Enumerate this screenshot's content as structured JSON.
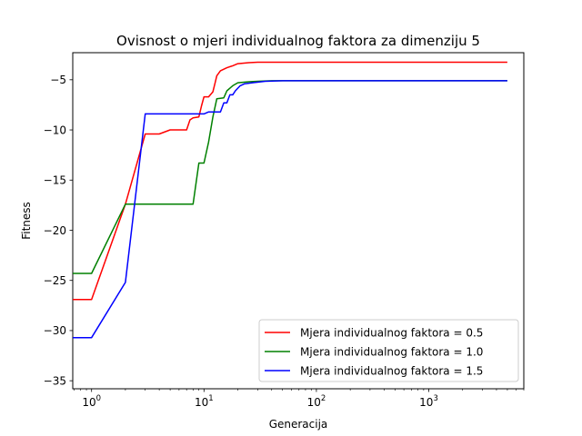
{
  "chart_data": {
    "type": "line",
    "title": "Ovisnost o mjeri individualnog faktora za dimenziju 5",
    "xlabel": "Generacija",
    "ylabel": "Fitness",
    "xscale": "log",
    "xlim": [
      0.68,
      7000
    ],
    "ylim": [
      -35.8,
      -2.3
    ],
    "xticks": [
      {
        "value": 1,
        "base": "10",
        "exp": "0"
      },
      {
        "value": 10,
        "base": "10",
        "exp": "1"
      },
      {
        "value": 100,
        "base": "10",
        "exp": "2"
      },
      {
        "value": 1000,
        "base": "10",
        "exp": "3"
      }
    ],
    "yticks": [
      {
        "value": -35,
        "label": "−35"
      },
      {
        "value": -30,
        "label": "−30"
      },
      {
        "value": -25,
        "label": "−25"
      },
      {
        "value": -20,
        "label": "−20"
      },
      {
        "value": -15,
        "label": "−15"
      },
      {
        "value": -10,
        "label": "−10"
      },
      {
        "value": -5,
        "label": "−5"
      }
    ],
    "grid": false,
    "legend_position": "lower-right",
    "series": [
      {
        "name": "Mjera individualnog faktora = 0.5",
        "color": "#ff0000",
        "points": [
          [
            0.68,
            -26.9
          ],
          [
            1,
            -26.9
          ],
          [
            2,
            -17.4
          ],
          [
            3,
            -10.4
          ],
          [
            4,
            -10.4
          ],
          [
            5,
            -10.0
          ],
          [
            6,
            -10.0
          ],
          [
            7,
            -10.0
          ],
          [
            7.5,
            -9.0
          ],
          [
            8,
            -8.8
          ],
          [
            9,
            -8.7
          ],
          [
            9.5,
            -7.6
          ],
          [
            10,
            -6.7
          ],
          [
            11,
            -6.7
          ],
          [
            12,
            -6.2
          ],
          [
            12.5,
            -5.4
          ],
          [
            13,
            -4.6
          ],
          [
            14,
            -4.1
          ],
          [
            16,
            -3.8
          ],
          [
            18,
            -3.6
          ],
          [
            20,
            -3.4
          ],
          [
            25,
            -3.3
          ],
          [
            30,
            -3.25
          ],
          [
            40,
            -3.25
          ],
          [
            100,
            -3.25
          ],
          [
            1000,
            -3.25
          ],
          [
            5000,
            -3.25
          ]
        ]
      },
      {
        "name": "Mjera individualnog faktora = 1.0",
        "color": "#008000",
        "points": [
          [
            0.68,
            -24.3
          ],
          [
            1,
            -24.3
          ],
          [
            2,
            -17.4
          ],
          [
            3,
            -17.4
          ],
          [
            5,
            -17.4
          ],
          [
            8,
            -17.4
          ],
          [
            9,
            -13.3
          ],
          [
            10,
            -13.3
          ],
          [
            11,
            -11.2
          ],
          [
            12,
            -8.7
          ],
          [
            13,
            -6.9
          ],
          [
            15,
            -6.8
          ],
          [
            16,
            -6.1
          ],
          [
            18,
            -5.6
          ],
          [
            20,
            -5.3
          ],
          [
            25,
            -5.2
          ],
          [
            30,
            -5.15
          ],
          [
            40,
            -5.1
          ],
          [
            100,
            -5.1
          ],
          [
            1000,
            -5.1
          ],
          [
            5000,
            -5.1
          ]
        ]
      },
      {
        "name": "Mjera individualnog faktora = 1.5",
        "color": "#0000ff",
        "points": [
          [
            0.68,
            -30.7
          ],
          [
            1,
            -30.7
          ],
          [
            2,
            -25.2
          ],
          [
            3,
            -8.4
          ],
          [
            5,
            -8.4
          ],
          [
            8,
            -8.4
          ],
          [
            10,
            -8.4
          ],
          [
            11,
            -8.2
          ],
          [
            14,
            -8.2
          ],
          [
            15,
            -7.3
          ],
          [
            16,
            -7.3
          ],
          [
            17,
            -6.5
          ],
          [
            18,
            -6.5
          ],
          [
            19,
            -6.1
          ],
          [
            21,
            -5.6
          ],
          [
            23,
            -5.4
          ],
          [
            27,
            -5.3
          ],
          [
            35,
            -5.15
          ],
          [
            50,
            -5.1
          ],
          [
            100,
            -5.1
          ],
          [
            1000,
            -5.1
          ],
          [
            5000,
            -5.1
          ]
        ]
      }
    ]
  }
}
